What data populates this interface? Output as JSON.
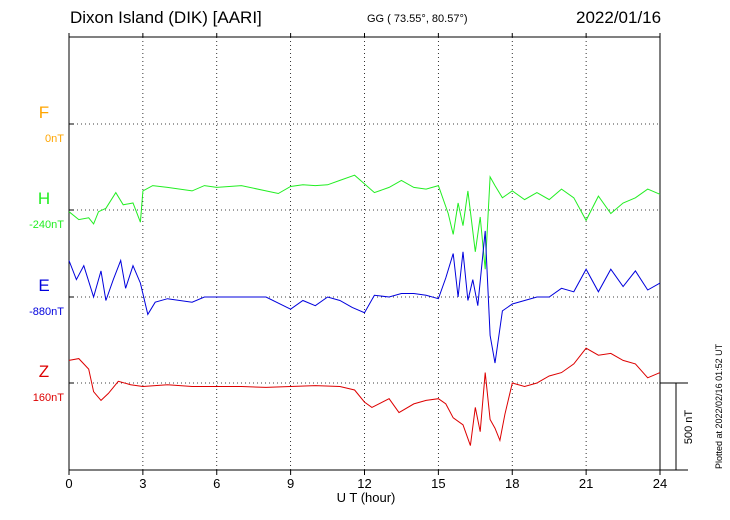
{
  "header": {
    "station": "Dixon Island (DIK)  [AARI]",
    "coords": "GG ( 73.55°,  80.57°)",
    "date": "2022/01/16"
  },
  "plotted_note": "Plotted at 2022/02/16 01:52 UT",
  "colors": {
    "F": "#ffa500",
    "H": "#22ee22",
    "E": "#0000dd",
    "Z": "#dd0000"
  },
  "chart_data": {
    "type": "line",
    "title": "Dixon Island (DIK)  [AARI]",
    "xlabel": "U T (hour)",
    "xlim": [
      0,
      24
    ],
    "xticks": [
      "0",
      "3",
      "6",
      "9",
      "12",
      "15",
      "18",
      "21",
      "24"
    ],
    "scale_bar_label": "500 nT",
    "grid": true,
    "series": [
      {
        "name": "F",
        "baseline_label": "0nT",
        "points": []
      },
      {
        "name": "H",
        "baseline_label": "-240nT",
        "points": [
          [
            0,
            -250
          ],
          [
            0.4,
            -295
          ],
          [
            0.8,
            -285
          ],
          [
            1.0,
            -320
          ],
          [
            1.2,
            -250
          ],
          [
            1.5,
            -230
          ],
          [
            1.9,
            -140
          ],
          [
            2.2,
            -210
          ],
          [
            2.6,
            -200
          ],
          [
            2.9,
            -310
          ],
          [
            3.0,
            -130
          ],
          [
            3.4,
            -100
          ],
          [
            4,
            -110
          ],
          [
            5,
            -130
          ],
          [
            5.5,
            -100
          ],
          [
            6,
            -110
          ],
          [
            7,
            -100
          ],
          [
            8,
            -130
          ],
          [
            8.5,
            -145
          ],
          [
            9,
            -105
          ],
          [
            9.5,
            -95
          ],
          [
            10,
            -100
          ],
          [
            10.5,
            -95
          ],
          [
            11,
            -70
          ],
          [
            11.6,
            -40
          ],
          [
            12,
            -90
          ],
          [
            12.4,
            -140
          ],
          [
            13,
            -110
          ],
          [
            13.5,
            -70
          ],
          [
            14,
            -110
          ],
          [
            14.5,
            -120
          ],
          [
            15,
            -100
          ],
          [
            15.4,
            -260
          ],
          [
            15.6,
            -380
          ],
          [
            15.8,
            -200
          ],
          [
            16.0,
            -330
          ],
          [
            16.2,
            -130
          ],
          [
            16.5,
            -480
          ],
          [
            16.7,
            -280
          ],
          [
            16.9,
            -580
          ],
          [
            17.1,
            -50
          ],
          [
            17.3,
            -100
          ],
          [
            17.6,
            -170
          ],
          [
            18,
            -130
          ],
          [
            18.5,
            -180
          ],
          [
            19,
            -140
          ],
          [
            19.5,
            -180
          ],
          [
            20,
            -120
          ],
          [
            20.5,
            -170
          ],
          [
            21,
            -300
          ],
          [
            21.5,
            -160
          ],
          [
            22,
            -260
          ],
          [
            22.5,
            -200
          ],
          [
            23,
            -170
          ],
          [
            23.5,
            -120
          ],
          [
            24,
            -150
          ]
        ]
      },
      {
        "name": "E",
        "baseline_label": "-880nT",
        "points": [
          [
            0,
            -670
          ],
          [
            0.3,
            -780
          ],
          [
            0.6,
            -700
          ],
          [
            1.0,
            -880
          ],
          [
            1.3,
            -730
          ],
          [
            1.5,
            -900
          ],
          [
            1.8,
            -780
          ],
          [
            2.1,
            -670
          ],
          [
            2.3,
            -830
          ],
          [
            2.6,
            -700
          ],
          [
            2.9,
            -800
          ],
          [
            3.2,
            -980
          ],
          [
            3.5,
            -910
          ],
          [
            4,
            -890
          ],
          [
            5,
            -910
          ],
          [
            5.5,
            -880
          ],
          [
            6,
            -880
          ],
          [
            7,
            -880
          ],
          [
            8,
            -880
          ],
          [
            9,
            -950
          ],
          [
            9.5,
            -900
          ],
          [
            10,
            -930
          ],
          [
            10.5,
            -880
          ],
          [
            11,
            -900
          ],
          [
            11.5,
            -940
          ],
          [
            12,
            -970
          ],
          [
            12.4,
            -870
          ],
          [
            13,
            -880
          ],
          [
            13.5,
            -860
          ],
          [
            14,
            -860
          ],
          [
            14.5,
            -870
          ],
          [
            15,
            -890
          ],
          [
            15.3,
            -770
          ],
          [
            15.6,
            -630
          ],
          [
            15.8,
            -880
          ],
          [
            16.0,
            -620
          ],
          [
            16.2,
            -900
          ],
          [
            16.4,
            -780
          ],
          [
            16.6,
            -930
          ],
          [
            16.9,
            -500
          ],
          [
            17.1,
            -1100
          ],
          [
            17.3,
            -1260
          ],
          [
            17.6,
            -960
          ],
          [
            18,
            -920
          ],
          [
            18.5,
            -900
          ],
          [
            19,
            -880
          ],
          [
            19.5,
            -880
          ],
          [
            20,
            -830
          ],
          [
            20.5,
            -850
          ],
          [
            21,
            -720
          ],
          [
            21.5,
            -850
          ],
          [
            22,
            -720
          ],
          [
            22.5,
            -820
          ],
          [
            23,
            -730
          ],
          [
            23.5,
            -840
          ],
          [
            24,
            -800
          ]
        ]
      },
      {
        "name": "Z",
        "baseline_label": "160nT",
        "points": [
          [
            0,
            290
          ],
          [
            0.4,
            300
          ],
          [
            0.8,
            240
          ],
          [
            1.0,
            110
          ],
          [
            1.3,
            60
          ],
          [
            1.6,
            100
          ],
          [
            2,
            170
          ],
          [
            2.5,
            150
          ],
          [
            3,
            140
          ],
          [
            4,
            150
          ],
          [
            5,
            140
          ],
          [
            6,
            140
          ],
          [
            7,
            140
          ],
          [
            8,
            135
          ],
          [
            9,
            140
          ],
          [
            10,
            145
          ],
          [
            11,
            140
          ],
          [
            11.6,
            120
          ],
          [
            12,
            50
          ],
          [
            12.3,
            20
          ],
          [
            13,
            70
          ],
          [
            13.4,
            -10
          ],
          [
            14,
            40
          ],
          [
            14.5,
            60
          ],
          [
            15,
            70
          ],
          [
            15.3,
            40
          ],
          [
            15.6,
            -40
          ],
          [
            16.0,
            -80
          ],
          [
            16.3,
            -200
          ],
          [
            16.5,
            20
          ],
          [
            16.7,
            -120
          ],
          [
            16.9,
            220
          ],
          [
            17.1,
            -50
          ],
          [
            17.3,
            -100
          ],
          [
            17.5,
            -170
          ],
          [
            17.7,
            -20
          ],
          [
            18,
            160
          ],
          [
            18.5,
            140
          ],
          [
            19,
            160
          ],
          [
            19.5,
            200
          ],
          [
            20,
            220
          ],
          [
            20.5,
            270
          ],
          [
            21,
            360
          ],
          [
            21.5,
            320
          ],
          [
            22,
            330
          ],
          [
            22.5,
            290
          ],
          [
            23,
            270
          ],
          [
            23.5,
            190
          ],
          [
            24,
            220
          ]
        ]
      }
    ]
  }
}
